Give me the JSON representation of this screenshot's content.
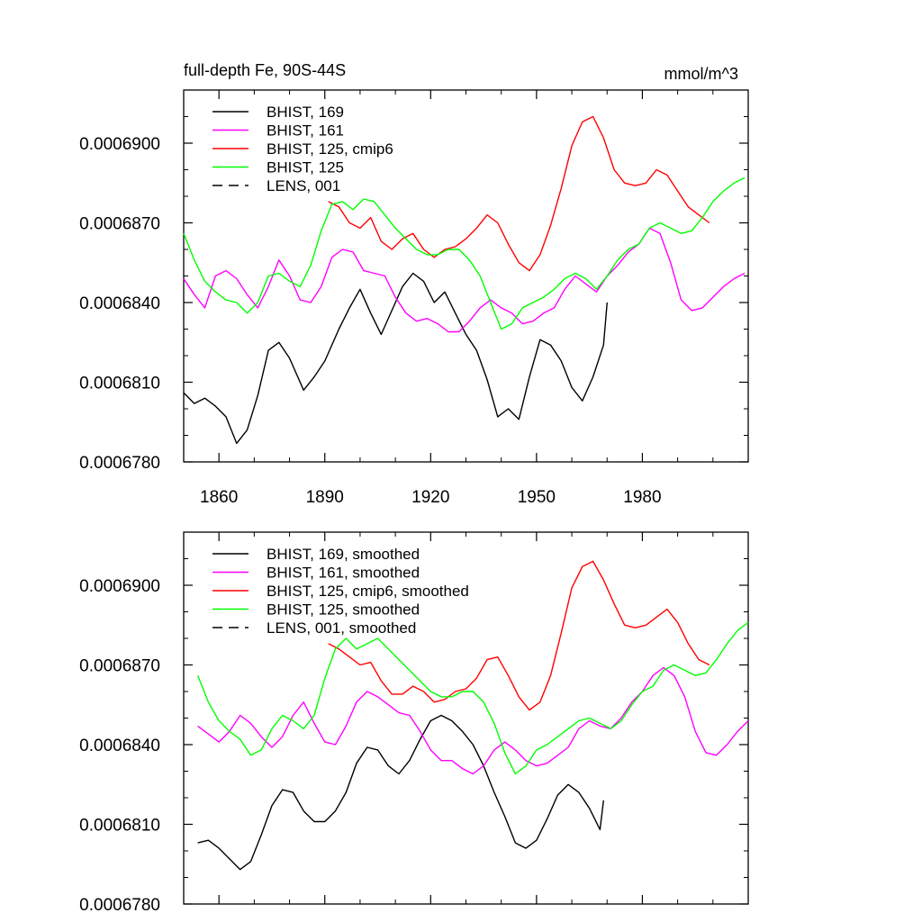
{
  "chart_data": [
    {
      "type": "line",
      "title": "full-depth Fe, 90S-44S",
      "units": "mmol/m^3",
      "xlabel": "",
      "ylabel": "",
      "xlim": [
        1850,
        2010
      ],
      "ylim": [
        0.000678,
        0.000692
      ],
      "xticks": [
        "1860",
        "1890",
        "1920",
        "1950",
        "1980"
      ],
      "yticks": [
        "0.0006780",
        "0.0006810",
        "0.0006840",
        "0.0006870",
        "0.0006900"
      ],
      "legend": [
        "BHIST, 169",
        "BHIST, 161",
        "BHIST, 125, cmip6",
        "BHIST, 125",
        "LENS, 001"
      ],
      "series": [
        {
          "name": "BHIST, 169",
          "color": "#000000",
          "x": [
            1850,
            1853,
            1856,
            1859,
            1862,
            1865,
            1868,
            1871,
            1874,
            1877,
            1880,
            1884,
            1887,
            1890,
            1894,
            1897,
            1900,
            1903,
            1906,
            1909,
            1912,
            1915,
            1918,
            1921,
            1924,
            1927,
            1930,
            1933,
            1936,
            1939,
            1942,
            1945,
            1948,
            1951,
            1954,
            1957,
            1960,
            1963,
            1966,
            1969,
            1970
          ],
          "values": [
            0.0006806,
            0.0006802,
            0.0006804,
            0.0006801,
            0.0006797,
            0.0006787,
            0.0006792,
            0.0006805,
            0.0006822,
            0.0006825,
            0.0006819,
            0.0006807,
            0.0006812,
            0.0006818,
            0.000683,
            0.0006838,
            0.0006845,
            0.0006836,
            0.0006828,
            0.0006837,
            0.0006846,
            0.0006851,
            0.0006848,
            0.000684,
            0.0006844,
            0.0006836,
            0.0006828,
            0.0006822,
            0.0006811,
            0.0006797,
            0.00068,
            0.0006796,
            0.0006812,
            0.0006826,
            0.0006824,
            0.0006818,
            0.0006808,
            0.0006803,
            0.0006812,
            0.0006824,
            0.000684
          ]
        },
        {
          "name": "BHIST, 161",
          "color": "#ff00ff",
          "x": [
            1850,
            1853,
            1856,
            1859,
            1862,
            1865,
            1868,
            1871,
            1874,
            1877,
            1880,
            1883,
            1886,
            1889,
            1892,
            1895,
            1898,
            1901,
            1904,
            1907,
            1910,
            1913,
            1916,
            1919,
            1922,
            1925,
            1928,
            1931,
            1934,
            1937,
            1940,
            1943,
            1946,
            1949,
            1952,
            1955,
            1958,
            1961,
            1964,
            1967,
            1970,
            1973,
            1976,
            1979,
            1982,
            1985,
            1988,
            1991,
            1994,
            1997,
            2000,
            2003,
            2006,
            2009
          ],
          "values": [
            0.0006849,
            0.0006843,
            0.0006838,
            0.000685,
            0.0006852,
            0.0006849,
            0.0006843,
            0.0006838,
            0.0006846,
            0.0006856,
            0.000685,
            0.0006841,
            0.000684,
            0.0006846,
            0.0006857,
            0.000686,
            0.0006859,
            0.0006852,
            0.0006851,
            0.000685,
            0.0006842,
            0.0006836,
            0.0006833,
            0.0006834,
            0.0006832,
            0.0006829,
            0.0006829,
            0.0006833,
            0.0006838,
            0.0006841,
            0.0006838,
            0.0006836,
            0.0006832,
            0.0006833,
            0.0006836,
            0.0006838,
            0.0006845,
            0.000685,
            0.0006847,
            0.0006844,
            0.000685,
            0.0006854,
            0.0006859,
            0.0006862,
            0.0006868,
            0.0006866,
            0.0006855,
            0.0006841,
            0.0006837,
            0.0006838,
            0.0006842,
            0.0006846,
            0.0006849,
            0.0006851
          ]
        },
        {
          "name": "BHIST, 125, cmip6",
          "color": "#ff0000",
          "x": [
            1891,
            1894,
            1897,
            1900,
            1903,
            1906,
            1909,
            1912,
            1915,
            1918,
            1921,
            1924,
            1927,
            1930,
            1933,
            1936,
            1939,
            1942,
            1945,
            1948,
            1951,
            1954,
            1957,
            1960,
            1963,
            1966,
            1969,
            1972,
            1975,
            1978,
            1981,
            1984,
            1987,
            1990,
            1993,
            1996,
            1999
          ],
          "values": [
            0.0006878,
            0.0006876,
            0.000687,
            0.0006868,
            0.0006872,
            0.0006863,
            0.000686,
            0.0006864,
            0.0006866,
            0.000686,
            0.0006857,
            0.000686,
            0.0006861,
            0.0006864,
            0.0006868,
            0.0006873,
            0.000687,
            0.0006862,
            0.0006855,
            0.0006852,
            0.0006858,
            0.0006869,
            0.0006883,
            0.0006899,
            0.0006908,
            0.000691,
            0.0006902,
            0.000689,
            0.0006885,
            0.0006884,
            0.0006885,
            0.000689,
            0.0006888,
            0.0006882,
            0.0006876,
            0.0006873,
            0.000687
          ]
        },
        {
          "name": "BHIST, 125",
          "color": "#00ff00",
          "x": [
            1850,
            1853,
            1856,
            1859,
            1862,
            1865,
            1868,
            1871,
            1874,
            1877,
            1880,
            1883,
            1886,
            1889,
            1892,
            1895,
            1898,
            1901,
            1904,
            1907,
            1910,
            1913,
            1916,
            1919,
            1922,
            1925,
            1928,
            1931,
            1934,
            1937,
            1940,
            1943,
            1946,
            1949,
            1952,
            1955,
            1958,
            1961,
            1964,
            1967,
            1970,
            1973,
            1976,
            1979,
            1982,
            1985,
            1988,
            1991,
            1994,
            1997,
            2000,
            2003,
            2006,
            2009
          ],
          "values": [
            0.0006866,
            0.0006856,
            0.0006848,
            0.0006844,
            0.0006841,
            0.000684,
            0.0006836,
            0.000684,
            0.000685,
            0.0006851,
            0.0006848,
            0.0006846,
            0.0006854,
            0.0006867,
            0.0006877,
            0.0006878,
            0.0006875,
            0.0006879,
            0.0006878,
            0.0006873,
            0.0006868,
            0.0006864,
            0.000686,
            0.0006858,
            0.0006858,
            0.000686,
            0.000686,
            0.0006856,
            0.000685,
            0.000684,
            0.000683,
            0.0006832,
            0.0006838,
            0.000684,
            0.0006842,
            0.0006845,
            0.0006849,
            0.0006851,
            0.0006849,
            0.0006845,
            0.000685,
            0.0006856,
            0.000686,
            0.0006862,
            0.0006868,
            0.000687,
            0.0006868,
            0.0006866,
            0.0006867,
            0.0006872,
            0.0006878,
            0.0006882,
            0.0006885,
            0.0006887
          ]
        }
      ]
    },
    {
      "type": "line",
      "title": "",
      "xlabel": "",
      "ylabel": "",
      "xlim": [
        1850,
        2010
      ],
      "ylim": [
        0.000678,
        0.000692
      ],
      "yticks": [
        "0.0006780",
        "0.0006810",
        "0.0006840",
        "0.0006870",
        "0.0006900"
      ],
      "legend": [
        "BHIST, 169, smoothed",
        "BHIST, 161, smoothed",
        "BHIST, 125, cmip6, smoothed",
        "BHIST, 125, smoothed",
        "LENS, 001, smoothed"
      ],
      "series": [
        {
          "name": "BHIST, 169, smoothed",
          "color": "#000000",
          "x": [
            1854,
            1857,
            1860,
            1863,
            1866,
            1869,
            1872,
            1875,
            1878,
            1881,
            1884,
            1887,
            1890,
            1893,
            1896,
            1899,
            1902,
            1905,
            1908,
            1911,
            1914,
            1917,
            1920,
            1923,
            1926,
            1929,
            1932,
            1935,
            1938,
            1941,
            1944,
            1947,
            1950,
            1953,
            1956,
            1959,
            1962,
            1965,
            1968,
            1969
          ],
          "values": [
            0.0006803,
            0.0006804,
            0.0006801,
            0.0006797,
            0.0006793,
            0.0006796,
            0.0006806,
            0.0006817,
            0.0006823,
            0.0006822,
            0.0006815,
            0.0006811,
            0.0006811,
            0.0006815,
            0.0006822,
            0.0006833,
            0.0006839,
            0.0006838,
            0.0006832,
            0.0006829,
            0.0006834,
            0.0006842,
            0.0006849,
            0.0006851,
            0.0006849,
            0.0006845,
            0.000684,
            0.0006832,
            0.0006822,
            0.0006813,
            0.0006803,
            0.0006801,
            0.0006804,
            0.0006812,
            0.0006821,
            0.0006825,
            0.0006822,
            0.0006816,
            0.0006808,
            0.0006819
          ]
        },
        {
          "name": "BHIST, 161, smoothed",
          "color": "#ff00ff",
          "x": [
            1854,
            1857,
            1860,
            1863,
            1866,
            1869,
            1872,
            1875,
            1878,
            1881,
            1884,
            1887,
            1890,
            1893,
            1896,
            1899,
            1902,
            1905,
            1908,
            1911,
            1914,
            1917,
            1920,
            1923,
            1926,
            1929,
            1932,
            1935,
            1938,
            1941,
            1944,
            1947,
            1950,
            1953,
            1956,
            1959,
            1962,
            1965,
            1968,
            1971,
            1974,
            1977,
            1980,
            1983,
            1986,
            1989,
            1992,
            1995,
            1998,
            2001,
            2004,
            2007,
            2010
          ],
          "values": [
            0.0006847,
            0.0006844,
            0.0006841,
            0.0006845,
            0.0006851,
            0.0006848,
            0.0006843,
            0.0006839,
            0.0006843,
            0.0006851,
            0.0006856,
            0.0006848,
            0.0006841,
            0.000684,
            0.0006847,
            0.0006856,
            0.000686,
            0.0006858,
            0.0006855,
            0.0006852,
            0.0006851,
            0.0006845,
            0.0006838,
            0.0006834,
            0.0006834,
            0.0006831,
            0.0006829,
            0.0006832,
            0.0006838,
            0.0006841,
            0.0006838,
            0.0006834,
            0.0006832,
            0.0006833,
            0.0006836,
            0.0006839,
            0.0006846,
            0.0006849,
            0.0006847,
            0.0006846,
            0.000685,
            0.0006856,
            0.000686,
            0.0006866,
            0.0006869,
            0.0006866,
            0.0006858,
            0.0006845,
            0.0006837,
            0.0006836,
            0.000684,
            0.0006845,
            0.0006849
          ]
        },
        {
          "name": "BHIST, 125, cmip6, smoothed",
          "color": "#ff0000",
          "x": [
            1891,
            1894,
            1897,
            1900,
            1903,
            1906,
            1909,
            1912,
            1915,
            1918,
            1921,
            1924,
            1927,
            1930,
            1933,
            1936,
            1939,
            1942,
            1945,
            1948,
            1951,
            1954,
            1957,
            1960,
            1963,
            1966,
            1969,
            1972,
            1975,
            1978,
            1981,
            1984,
            1987,
            1990,
            1993,
            1996,
            1999
          ],
          "values": [
            0.0006878,
            0.0006876,
            0.0006873,
            0.000687,
            0.0006871,
            0.0006864,
            0.0006859,
            0.0006859,
            0.0006862,
            0.000686,
            0.0006856,
            0.0006857,
            0.000686,
            0.0006861,
            0.0006865,
            0.0006872,
            0.0006873,
            0.0006866,
            0.0006858,
            0.0006853,
            0.0006856,
            0.0006866,
            0.0006882,
            0.0006899,
            0.0006907,
            0.0006909,
            0.0006902,
            0.0006893,
            0.0006885,
            0.0006884,
            0.0006885,
            0.0006888,
            0.0006891,
            0.0006886,
            0.0006878,
            0.0006872,
            0.000687
          ]
        },
        {
          "name": "BHIST, 125, smoothed",
          "color": "#00ff00",
          "x": [
            1854,
            1857,
            1860,
            1863,
            1866,
            1869,
            1872,
            1875,
            1878,
            1881,
            1884,
            1887,
            1890,
            1893,
            1896,
            1899,
            1902,
            1905,
            1908,
            1911,
            1914,
            1917,
            1920,
            1923,
            1926,
            1929,
            1932,
            1935,
            1938,
            1941,
            1944,
            1947,
            1950,
            1953,
            1956,
            1959,
            1962,
            1965,
            1968,
            1971,
            1974,
            1977,
            1980,
            1983,
            1986,
            1989,
            1992,
            1995,
            1998,
            2001,
            2004,
            2007,
            2010
          ],
          "values": [
            0.0006866,
            0.0006856,
            0.0006849,
            0.0006845,
            0.0006842,
            0.0006836,
            0.0006838,
            0.0006846,
            0.0006851,
            0.0006849,
            0.0006846,
            0.0006851,
            0.0006865,
            0.0006876,
            0.000688,
            0.0006876,
            0.0006878,
            0.000688,
            0.0006876,
            0.0006872,
            0.0006868,
            0.0006864,
            0.000686,
            0.0006858,
            0.0006858,
            0.000686,
            0.000686,
            0.0006856,
            0.0006848,
            0.0006837,
            0.0006829,
            0.0006832,
            0.0006838,
            0.000684,
            0.0006843,
            0.0006846,
            0.0006849,
            0.000685,
            0.0006848,
            0.0006846,
            0.0006849,
            0.0006855,
            0.000686,
            0.0006862,
            0.0006868,
            0.000687,
            0.0006868,
            0.0006866,
            0.0006867,
            0.0006872,
            0.0006878,
            0.0006883,
            0.0006886
          ]
        }
      ]
    }
  ]
}
